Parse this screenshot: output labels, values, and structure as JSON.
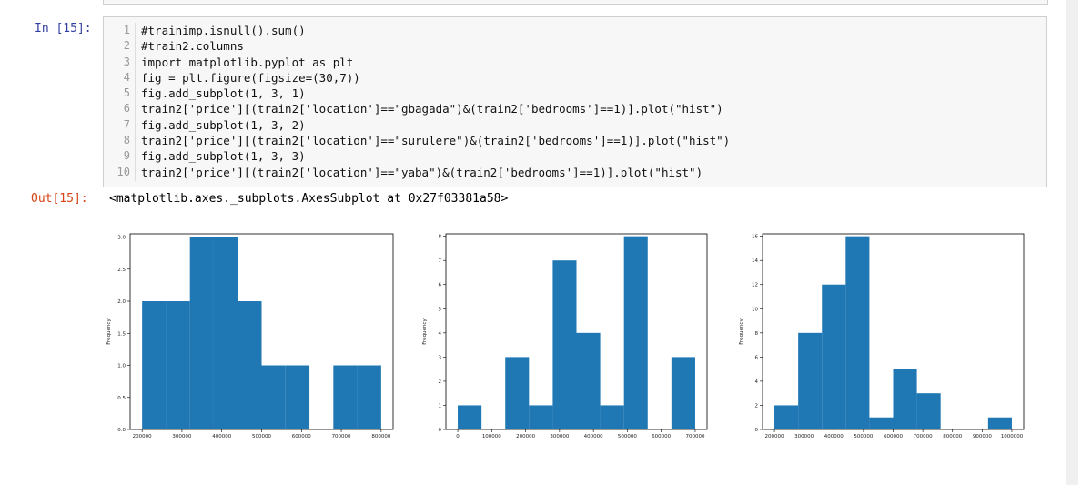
{
  "cell": {
    "in_prompt": "In [15]:",
    "line_numbers": [
      1,
      2,
      3,
      4,
      5,
      6,
      7,
      8,
      9,
      10
    ],
    "lines": [
      "#trainimp.isnull().sum()",
      "#train2.columns",
      "import matplotlib.pyplot as plt",
      "fig = plt.figure(figsize=(30,7))",
      "fig.add_subplot(1, 3, 1)",
      "train2['price'][(train2['location']==\"gbagada\")&(train2['bedrooms']==1)].plot(\"hist\")",
      "fig.add_subplot(1, 3, 2)",
      "train2['price'][(train2['location']==\"surulere\")&(train2['bedrooms']==1)].plot(\"hist\")",
      "fig.add_subplot(1, 3, 3)",
      "train2['price'][(train2['location']==\"yaba\")&(train2['bedrooms']==1)].plot(\"hist\")"
    ],
    "out_prompt": "Out[15]:",
    "output": "<matplotlib.axes._subplots.AxesSubplot at 0x27f03381a58>"
  },
  "charts": [
    {
      "type": "histogram",
      "ylabel": "Frequency",
      "color": "#1f77b4",
      "bins": [
        200000,
        260000,
        320000,
        380000,
        440000,
        500000,
        560000,
        620000,
        680000,
        740000,
        800000
      ],
      "counts": [
        2,
        2,
        3,
        3,
        2,
        1,
        1,
        0,
        1,
        1
      ],
      "xlim": [
        170000,
        830000
      ],
      "ylim": [
        0,
        3.05
      ],
      "xticks": [
        200000,
        300000,
        400000,
        500000,
        600000,
        700000,
        800000
      ],
      "yticks": [
        {
          "value": 0,
          "label": "0.0"
        },
        {
          "value": 0.5,
          "label": "0.5"
        },
        {
          "value": 1,
          "label": "1.0"
        },
        {
          "value": 1.5,
          "label": "1.5"
        },
        {
          "value": 2,
          "label": "2.0"
        },
        {
          "value": 2.5,
          "label": "2.5"
        },
        {
          "value": 3,
          "label": "3.0"
        }
      ]
    },
    {
      "type": "histogram",
      "ylabel": "Frequency",
      "color": "#1f77b4",
      "bins": [
        0,
        70000,
        140000,
        210000,
        280000,
        350000,
        420000,
        490000,
        560000,
        630000,
        700000
      ],
      "counts": [
        1,
        0,
        3,
        1,
        7,
        4,
        1,
        8,
        0,
        3
      ],
      "xlim": [
        -35000,
        735000
      ],
      "ylim": [
        0,
        8.1
      ],
      "xticks": [
        0,
        100000,
        200000,
        300000,
        400000,
        500000,
        600000,
        700000
      ],
      "yticks": [
        0,
        1,
        2,
        3,
        4,
        5,
        6,
        7,
        8
      ]
    },
    {
      "type": "histogram",
      "ylabel": "Frequency",
      "color": "#1f77b4",
      "bins": [
        200000,
        280000,
        360000,
        440000,
        520000,
        600000,
        680000,
        760000,
        840000,
        920000,
        1000000
      ],
      "counts": [
        2,
        8,
        12,
        16,
        1,
        5,
        3,
        0,
        0,
        1
      ],
      "xlim": [
        160000,
        1040000
      ],
      "ylim": [
        0,
        16.2
      ],
      "xticks": [
        200000,
        300000,
        400000,
        500000,
        600000,
        700000,
        800000,
        900000,
        1000000
      ],
      "yticks": [
        0,
        2,
        4,
        6,
        8,
        10,
        12,
        14,
        16
      ]
    }
  ]
}
